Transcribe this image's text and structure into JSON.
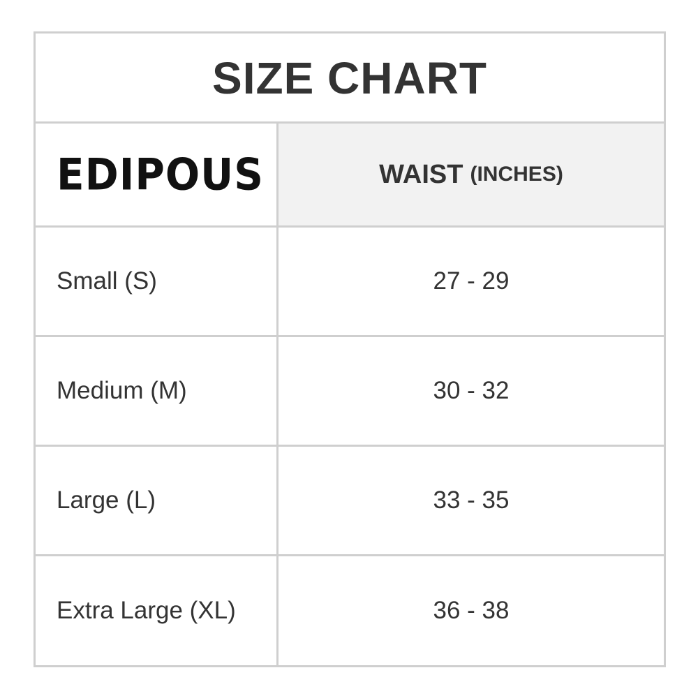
{
  "title": "SIZE CHART",
  "header": {
    "brand_logo_text": "EDIPOUS",
    "column_label": "WAIST",
    "column_unit": "(INCHES)"
  },
  "rows": [
    {
      "size": "Small (S)",
      "waist": "27 - 29"
    },
    {
      "size": "Medium (M)",
      "waist": "30 - 32"
    },
    {
      "size": "Large (L)",
      "waist": "33 - 35"
    },
    {
      "size": "Extra Large (XL)",
      "waist": "36 - 38"
    }
  ],
  "colors": {
    "text": "#333333",
    "border": "#cfcfcf",
    "header_bg": "#f2f2f2"
  }
}
